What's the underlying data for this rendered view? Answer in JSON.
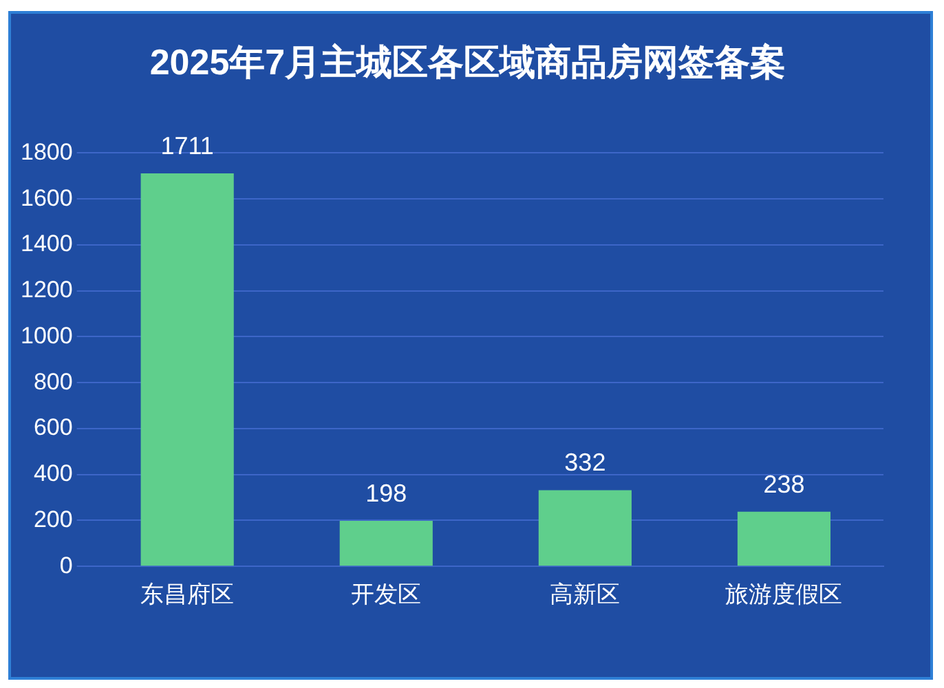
{
  "chart_data": {
    "type": "bar",
    "title": "2025年7月主城区各区域商品房网签备案",
    "categories": [
      "东昌府区",
      "开发区",
      "高新区",
      "旅游度假区"
    ],
    "values": [
      1711,
      198,
      332,
      238
    ],
    "color": "#5fcf8c",
    "ylim": [
      0,
      1800
    ],
    "yticks": [
      0,
      200,
      400,
      600,
      800,
      1000,
      1200,
      1400,
      1600,
      1800
    ],
    "grid": "y",
    "data_labels": true,
    "legend": false
  }
}
